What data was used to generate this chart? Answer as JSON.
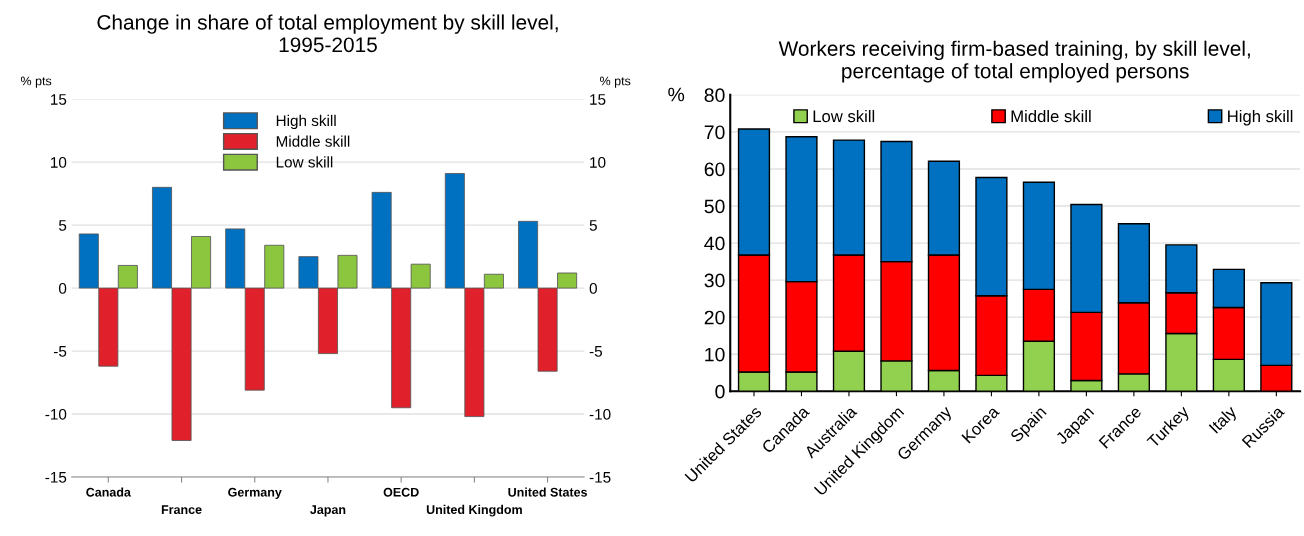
{
  "chart_data": [
    {
      "type": "bar",
      "title": "Change in share of total employment by skill level,\n1995-2015",
      "ylabel": "% pts",
      "y2label": "% pts",
      "categories": [
        "Canada",
        "France",
        "Germany",
        "Japan",
        "OECD",
        "United Kingdom",
        "United States"
      ],
      "series": [
        {
          "name": "High skill",
          "color": "#0070c0",
          "values": [
            4.3,
            8.0,
            4.7,
            2.5,
            7.6,
            9.1,
            5.3
          ]
        },
        {
          "name": "Middle skill",
          "color": "#e0202a",
          "values": [
            -6.2,
            -12.1,
            -8.1,
            -5.2,
            -9.5,
            -10.2,
            -6.6
          ]
        },
        {
          "name": "Low skill",
          "color": "#8cc63f",
          "values": [
            1.8,
            4.1,
            3.4,
            2.6,
            1.9,
            1.1,
            1.2
          ]
        }
      ],
      "ylim": [
        -15,
        15
      ],
      "yticks": [
        -15,
        -10,
        -5,
        0,
        5,
        10,
        15
      ],
      "y2lim": [
        -15,
        15
      ],
      "y2ticks": [
        -15,
        -10,
        -5,
        0,
        5,
        10,
        15
      ],
      "grid": "y",
      "legend": "top"
    },
    {
      "type": "bar",
      "stacked": true,
      "title": "Workers receiving firm-based training, by skill level,\npercentage of total employed persons",
      "ylabel": "%",
      "categories": [
        "United States",
        "Canada",
        "Australia",
        "United Kingdom",
        "Germany",
        "Korea",
        "Spain",
        "Japan",
        "France",
        "Turkey",
        "Italy",
        "Russia"
      ],
      "series": [
        {
          "name": "Low skill",
          "color": "#92d050",
          "values": [
            5.2,
            5.2,
            10.8,
            8.2,
            5.6,
            4.3,
            13.5,
            2.9,
            4.7,
            15.6,
            8.6,
            null
          ]
        },
        {
          "name": "Middle skill",
          "color": "#ff0000",
          "values": [
            31.6,
            24.4,
            26.0,
            26.8,
            31.2,
            21.5,
            14.0,
            18.4,
            19.2,
            11.0,
            14.0,
            7.0
          ]
        },
        {
          "name": "High skill",
          "color": "#0070c0",
          "values": [
            34.0,
            39.1,
            31.0,
            32.4,
            25.3,
            31.9,
            28.9,
            29.1,
            21.3,
            12.9,
            10.3,
            22.3
          ]
        }
      ],
      "ylim": [
        0,
        80
      ],
      "yticks": [
        0,
        10,
        20,
        30,
        40,
        50,
        60,
        70,
        80
      ],
      "grid": "y",
      "legend": "top"
    }
  ]
}
